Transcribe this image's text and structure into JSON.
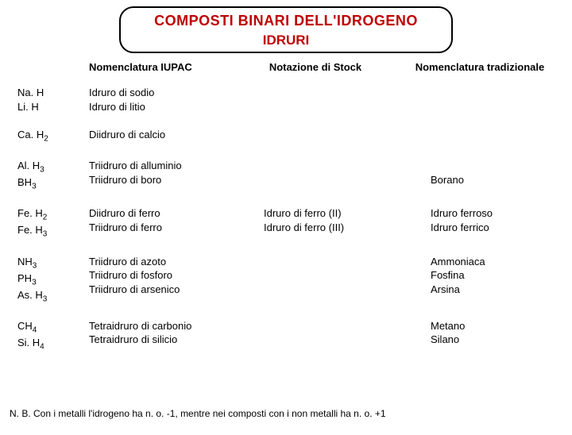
{
  "title": {
    "main": "COMPOSTI BINARI DELL'IDROGENO",
    "sub": "IDRURI"
  },
  "headers": {
    "iupac": "Nomenclatura IUPAC",
    "stock": "Notazione di Stock",
    "trad": "Nomenclatura tradizionale"
  },
  "rows": [
    {
      "formulas": [
        "Na. H",
        "Li. H"
      ],
      "iupac": [
        "Idruro di sodio",
        "Idruro di litio"
      ],
      "stock": [],
      "trad": []
    },
    {
      "formulas": [
        "Ca. H₂"
      ],
      "iupac": [
        "Diidruro di calcio"
      ],
      "stock": [],
      "trad": []
    },
    {
      "formulas": [
        "Al. H₃",
        "BH₃"
      ],
      "iupac": [
        "Triidruro di alluminio",
        "Triidruro di boro"
      ],
      "stock": [],
      "trad": [
        "",
        "Borano"
      ]
    },
    {
      "formulas": [
        "Fe. H₂",
        "Fe. H₃"
      ],
      "iupac": [
        "Diidruro di ferro",
        "Triidruro di ferro"
      ],
      "stock": [
        "Idruro di ferro (II)",
        "Idruro di ferro (III)"
      ],
      "trad": [
        "Idruro ferroso",
        "Idruro ferrico"
      ]
    },
    {
      "formulas": [
        "NH₃",
        "PH₃",
        "As. H₃"
      ],
      "iupac": [
        "Triidruro di azoto",
        "Triidruro di fosforo",
        "Triidruro di arsenico"
      ],
      "stock": [],
      "trad": [
        "Ammoniaca",
        "Fosfina",
        "Arsina"
      ]
    },
    {
      "formulas": [
        "CH₄",
        "Si. H₄"
      ],
      "iupac": [
        "Tetraidruro di carbonio",
        "Tetraidruro di silicio"
      ],
      "stock": [],
      "trad": [
        "Metano",
        "Silano"
      ]
    }
  ],
  "footnote": "N. B. Con i metalli l'idrogeno ha n. o. -1, mentre nei composti con i non metalli ha n. o. +1"
}
